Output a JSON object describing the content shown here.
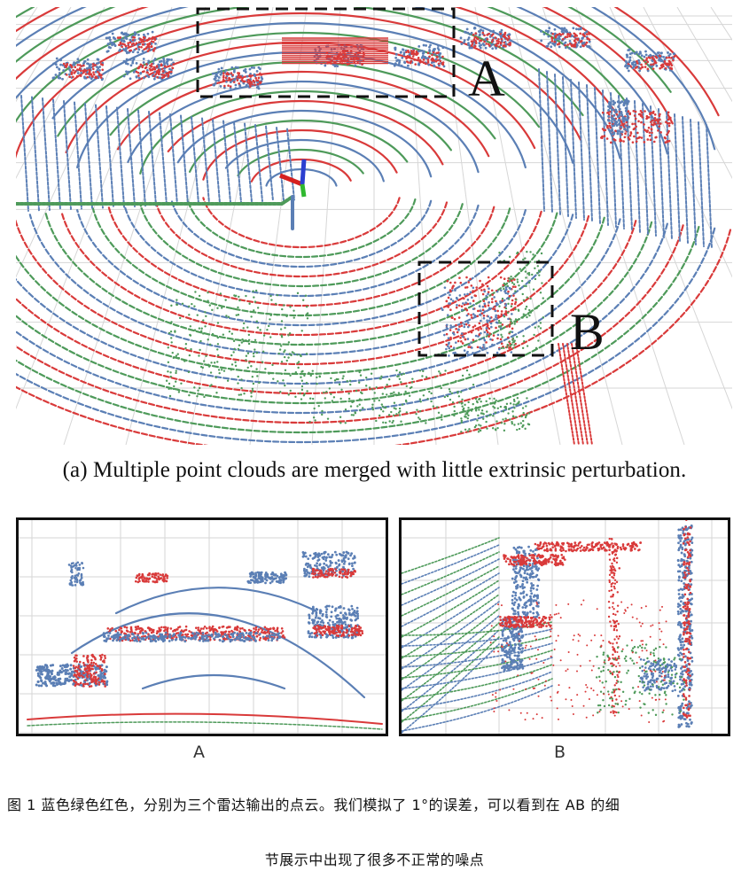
{
  "figure": {
    "box_labels": [
      "A",
      "B"
    ],
    "caption_a": "(a) Multiple point clouds are merged with little extrinsic perturbation.",
    "sublabels": [
      "A",
      "B"
    ],
    "caption_cn_line1": "图 1 蓝色绿色红色，分别为三个雷达输出的点云。我们模拟了 1°的误差，可以看到在 AB 的细",
    "caption_cn_line2": "节展示中出现了很多不正常的噪点"
  },
  "colors": {
    "blue_cloud": "#5b7fb5",
    "green_cloud": "#4e9a5a",
    "red_cloud": "#d93a3a",
    "grid": "#d6d6d6",
    "frame": "#111111"
  }
}
